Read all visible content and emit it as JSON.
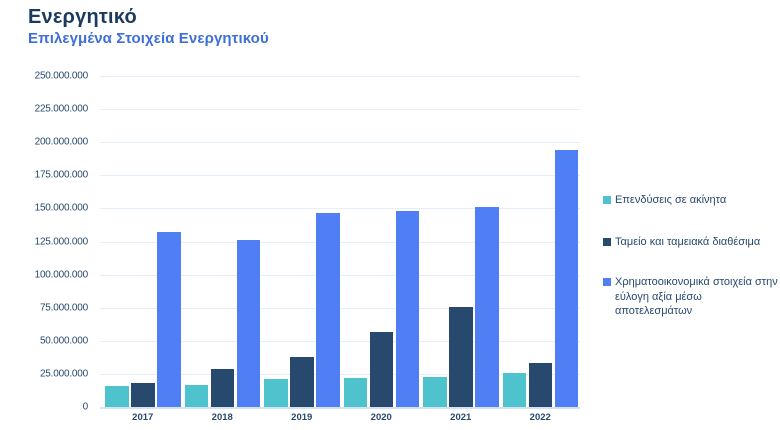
{
  "header": {
    "title": "Ενεργητικό",
    "subtitle": "Επιλεγμένα Στοιχεία Ενεργητικού"
  },
  "theme": {
    "background": "#ffffff",
    "title_color": "#1b3a5e",
    "subtitle_color": "#3e6fd8",
    "axis_text_color": "#27496d",
    "legend_text_color": "#27496d",
    "gridline_color": "#e4eef8",
    "baseline_color": "#d3e2f1"
  },
  "chart_data": {
    "type": "bar",
    "title": "Ενεργητικό",
    "subtitle": "Επιλεγμένα Στοιχεία Ενεργητικού",
    "categories": [
      "2017",
      "2018",
      "2019",
      "2020",
      "2021",
      "2022"
    ],
    "series": [
      {
        "name": "Επενδύσεις σε ακίνητα",
        "color": "#4ec3ce",
        "values": [
          15500000,
          16500000,
          21000000,
          22000000,
          23000000,
          26000000
        ]
      },
      {
        "name": "Ταμείο και ταμειακά διαθέσιμα",
        "color": "#27496d",
        "values": [
          18000000,
          28500000,
          38000000,
          57000000,
          75500000,
          33000000
        ]
      },
      {
        "name": "Χρηματοοικονομικά στοιχεία στην\nεύλογη αξία μέσω αποτελεσμάτων",
        "color": "#4f7ef5",
        "values": [
          132500000,
          126000000,
          146500000,
          148000000,
          151000000,
          194000000
        ]
      }
    ],
    "xlabel": "",
    "ylabel": "",
    "ylim": [
      0,
      250000000
    ],
    "ytick_step": 25000000,
    "ytick_labels": [
      "0",
      "25.000.000",
      "50.000.000",
      "75.000.000",
      "100.000.000",
      "125.000.000",
      "150.000.000",
      "175.000.000",
      "200.000.000",
      "225.000.000",
      "250.000.000"
    ],
    "grid": true,
    "legend_position": "right"
  }
}
